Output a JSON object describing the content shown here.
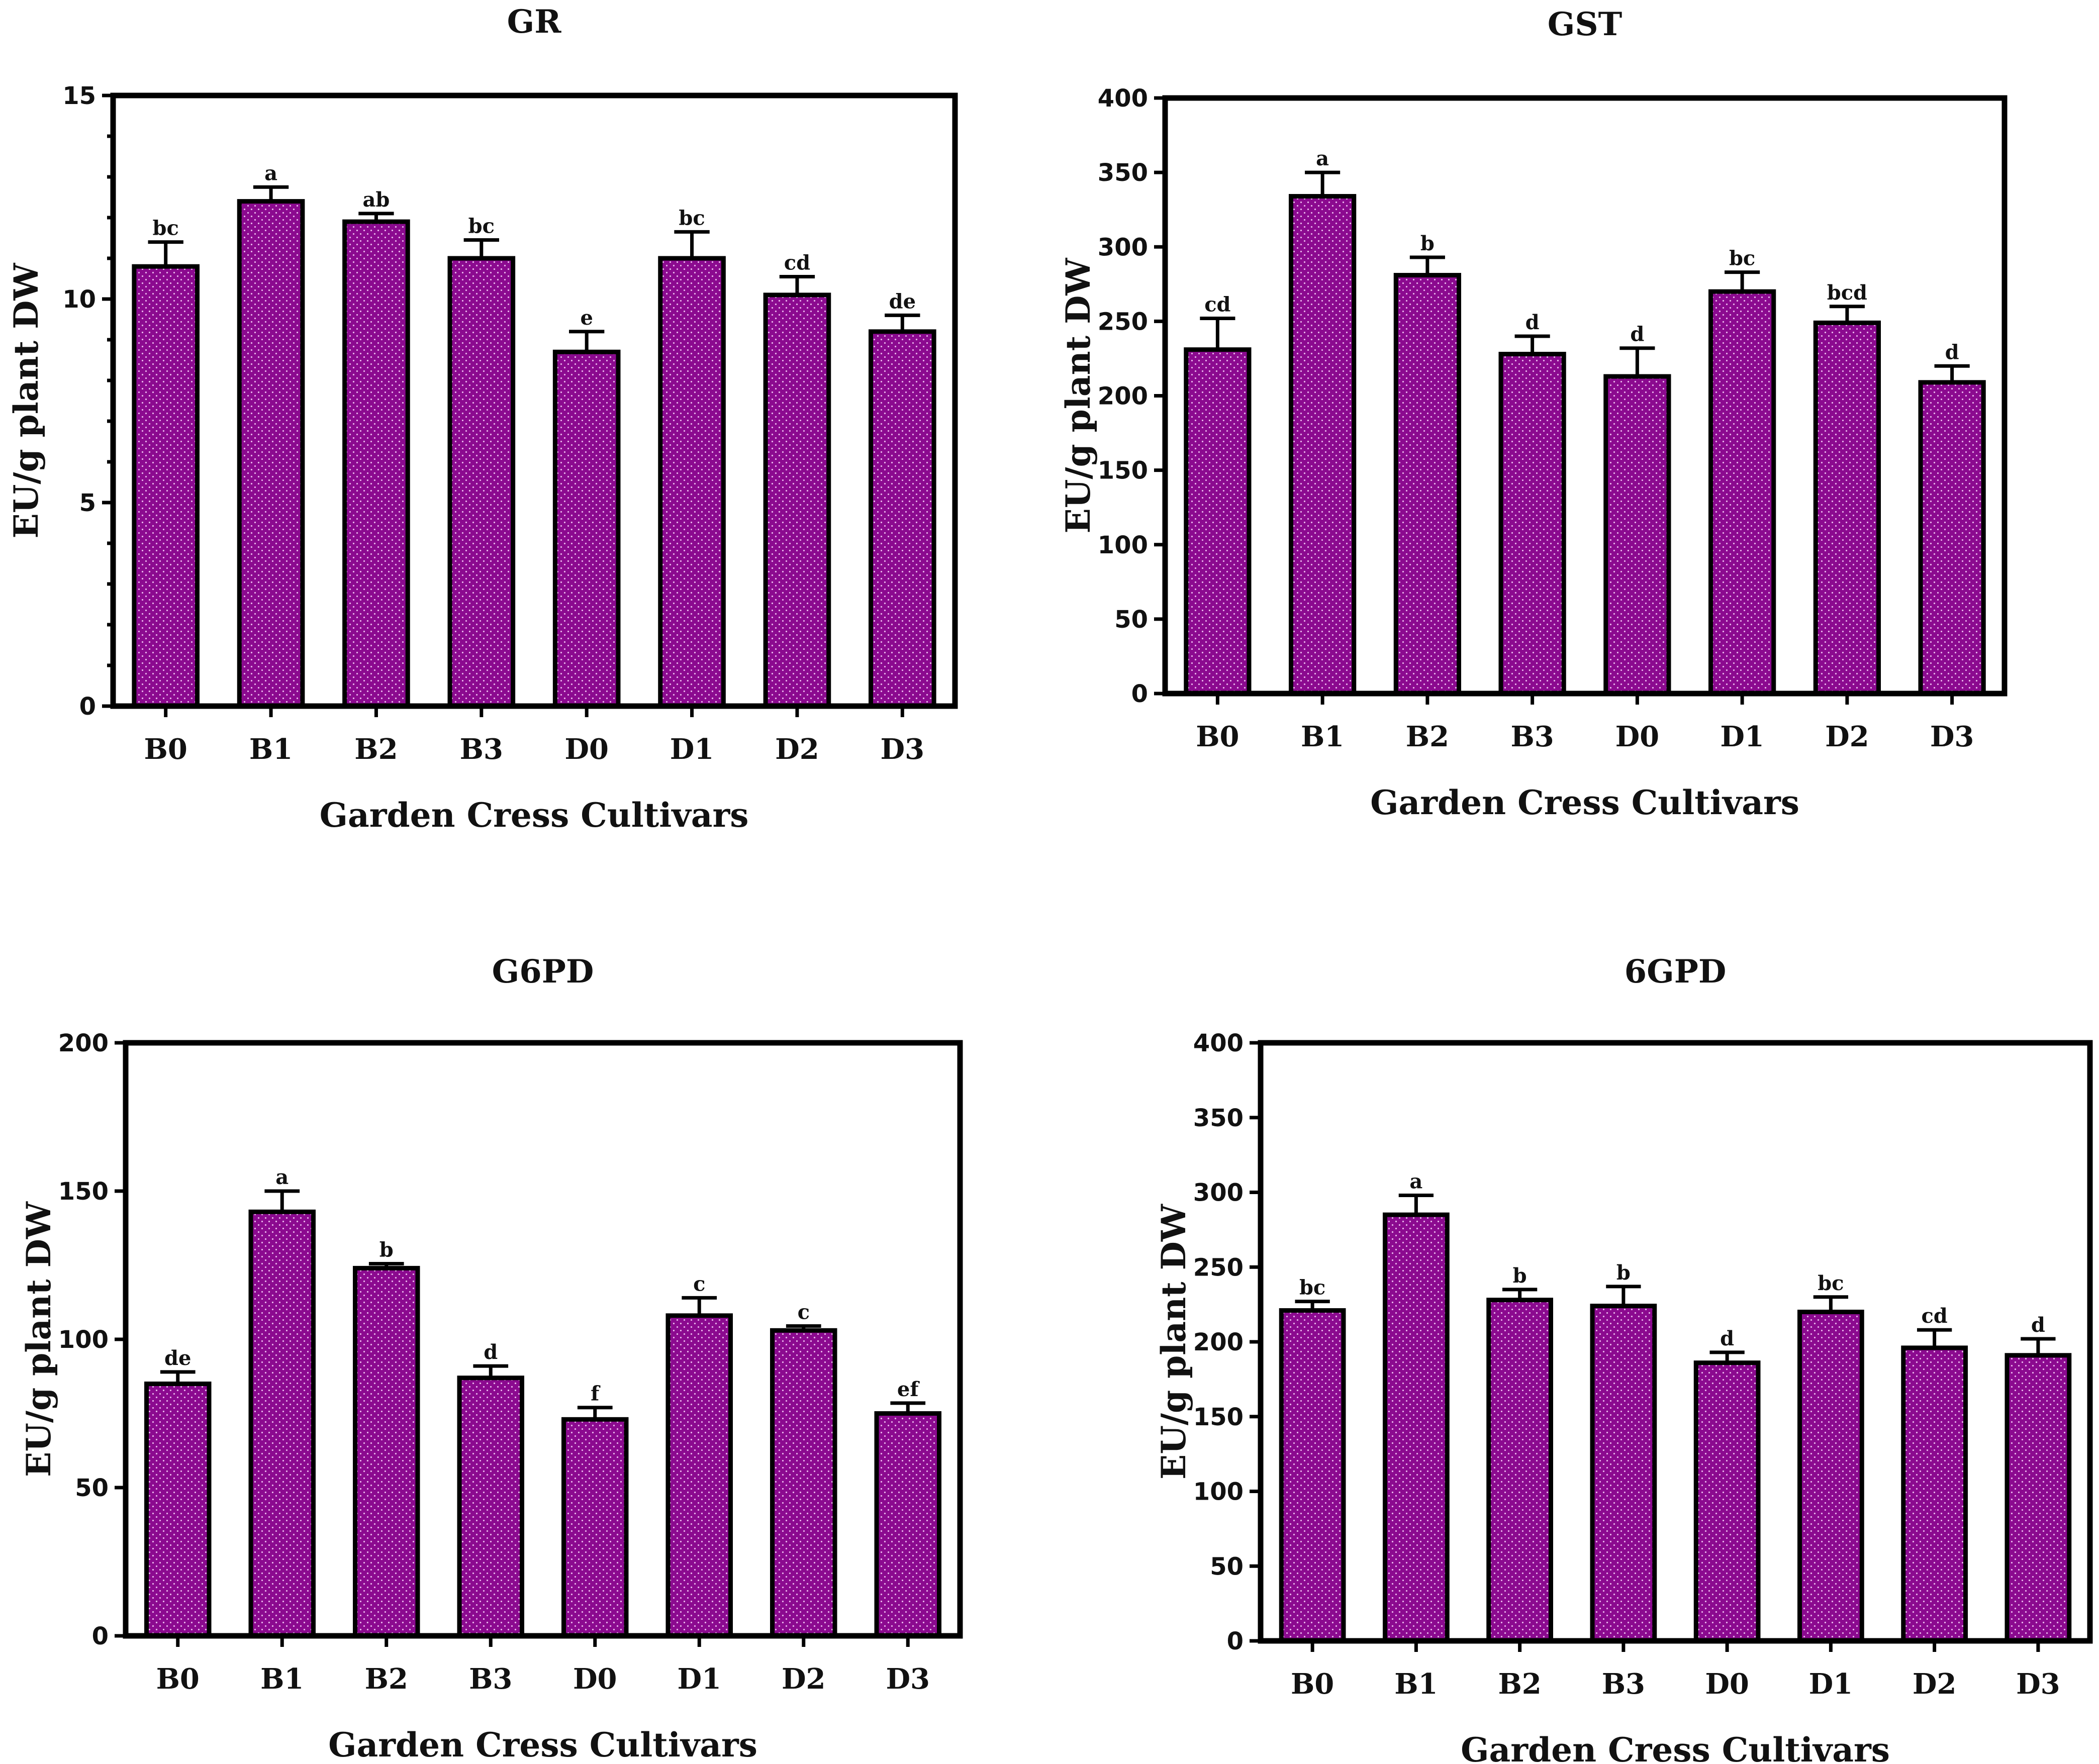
{
  "colors": {
    "bar_fill": "#8b0a8f",
    "bar_dot": "#e9b7ec",
    "axis": "#000000"
  },
  "chart_data": [
    {
      "type": "bar",
      "title": "GR",
      "xlabel": "Garden Cress Cultivars",
      "ylabel": "EU/g plant DW",
      "categories": [
        "B0",
        "B1",
        "B2",
        "B3",
        "D0",
        "D1",
        "D2",
        "D3"
      ],
      "values": [
        10.8,
        12.4,
        11.9,
        11.0,
        8.7,
        11.0,
        10.1,
        9.2
      ],
      "errors": [
        0.6,
        0.35,
        0.2,
        0.45,
        0.5,
        0.65,
        0.45,
        0.4
      ],
      "letters": [
        "bc",
        "a",
        "ab",
        "bc",
        "e",
        "bc",
        "cd",
        "de"
      ],
      "ylim": [
        0,
        15
      ],
      "yticks": [
        0,
        5,
        10,
        15
      ],
      "minor_ticks_per_major": 5
    },
    {
      "type": "bar",
      "title": "GST",
      "xlabel": "Garden Cress Cultivars",
      "ylabel": "EU/g plant DW",
      "categories": [
        "B0",
        "B1",
        "B2",
        "B3",
        "D0",
        "D1",
        "D2",
        "D3"
      ],
      "values": [
        231,
        334,
        281,
        228,
        213,
        270,
        249,
        209
      ],
      "errors": [
        21,
        16,
        12,
        12,
        19,
        13,
        11,
        11
      ],
      "letters": [
        "cd",
        "a",
        "b",
        "d",
        "d",
        "bc",
        "bcd",
        "d"
      ],
      "ylim": [
        0,
        400
      ],
      "yticks": [
        0,
        50,
        100,
        150,
        200,
        250,
        300,
        350,
        400
      ],
      "minor_ticks_per_major": 1
    },
    {
      "type": "bar",
      "title": "G6PD",
      "xlabel": "Garden Cress Cultivars",
      "ylabel": "EU/g plant DW",
      "categories": [
        "B0",
        "B1",
        "B2",
        "B3",
        "D0",
        "D1",
        "D2",
        "D3"
      ],
      "values": [
        85,
        143,
        124,
        87,
        73,
        108,
        103,
        75
      ],
      "errors": [
        4,
        7,
        1.5,
        4,
        4,
        6,
        1.5,
        3.5
      ],
      "letters": [
        "de",
        "a",
        "b",
        "d",
        "f",
        "c",
        "c",
        "ef"
      ],
      "ylim": [
        0,
        200
      ],
      "yticks": [
        0,
        50,
        100,
        150,
        200
      ],
      "minor_ticks_per_major": 1
    },
    {
      "type": "bar",
      "title": "6GPD",
      "xlabel": "Garden Cress Cultivars",
      "ylabel": "EU/g plant DW",
      "categories": [
        "B0",
        "B1",
        "B2",
        "B3",
        "D0",
        "D1",
        "D2",
        "D3"
      ],
      "values": [
        221,
        285,
        228,
        224,
        186,
        220,
        196,
        191
      ],
      "errors": [
        6,
        13,
        7,
        13,
        7,
        10,
        12,
        11
      ],
      "letters": [
        "bc",
        "a",
        "b",
        "b",
        "d",
        "bc",
        "cd",
        "d"
      ],
      "ylim": [
        0,
        400
      ],
      "yticks": [
        0,
        50,
        100,
        150,
        200,
        250,
        300,
        350,
        400
      ],
      "minor_ticks_per_major": 1
    }
  ]
}
